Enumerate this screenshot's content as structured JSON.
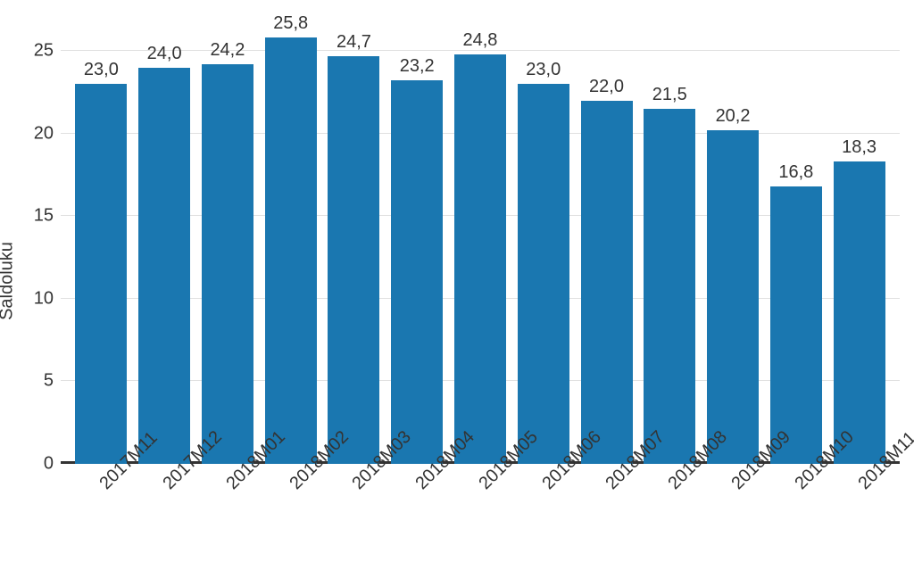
{
  "chart": {
    "type": "bar",
    "ylabel": "Saldoluku",
    "label_fontsize": 20,
    "value_fontsize": 20,
    "tick_fontsize": 20,
    "background_color": "#ffffff",
    "grid_color": "#e0e0e0",
    "bar_color": "#1a77b0",
    "baseline_color": "#333333",
    "text_color": "#333333",
    "ylim": [
      0,
      27
    ],
    "yticks": [
      0,
      5,
      10,
      15,
      20,
      25
    ],
    "bar_width": 0.82,
    "decimal_separator": ",",
    "value_decimals": 1,
    "categories": [
      "2017M11",
      "2017M12",
      "2018M01",
      "2018M02",
      "2018M03",
      "2018M04",
      "2018M05",
      "2018M06",
      "2018M07",
      "2018M08",
      "2018M09",
      "2018M10",
      "2018M11"
    ],
    "values": [
      23.0,
      24.0,
      24.2,
      25.8,
      24.7,
      23.2,
      24.8,
      23.0,
      22.0,
      21.5,
      20.2,
      16.8,
      18.3
    ]
  }
}
